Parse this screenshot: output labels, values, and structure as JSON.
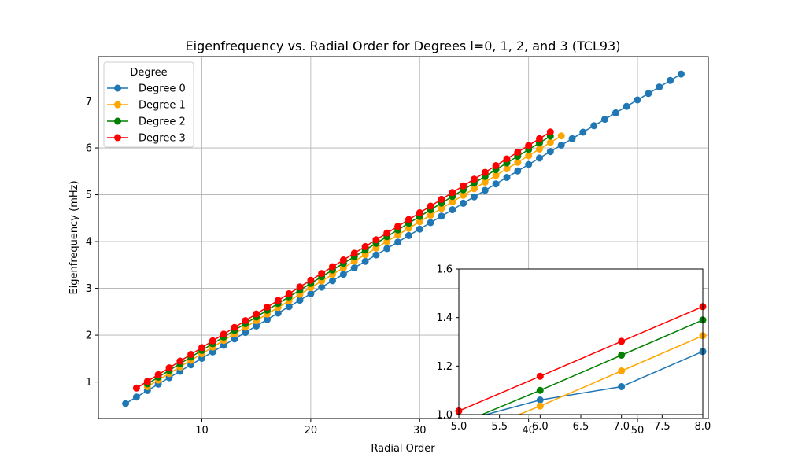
{
  "chart_data": {
    "type": "line",
    "title": "Eigenfrequency vs. Radial Order for Degrees l=0, 1, 2, and 3 (TCL93)",
    "xlabel": "Radial Order",
    "ylabel": "Eigenfrequency (mHz)",
    "xlim": [
      0.5,
      56.5
    ],
    "ylim": [
      0.22,
      7.95
    ],
    "xticks": [
      "10",
      "20",
      "30",
      "40",
      "50"
    ],
    "yticks": [
      "1",
      "2",
      "3",
      "4",
      "5",
      "6",
      "7"
    ],
    "grid": true,
    "legend": {
      "title": "Degree",
      "position": "top-left"
    },
    "series": [
      {
        "name": "Degree 0",
        "color": "#1f77b4",
        "n_start": 3,
        "n_end": 54,
        "f0": 0.54,
        "df": 0.138
      },
      {
        "name": "Degree 1",
        "color": "#ffa500",
        "n_start": 5,
        "n_end": 43,
        "f0": 0.9,
        "df": 0.141
      },
      {
        "name": "Degree 2",
        "color": "#008000",
        "n_start": 5,
        "n_end": 42,
        "f0": 0.96,
        "df": 0.143
      },
      {
        "name": "Degree 3",
        "color": "#ff0000",
        "n_start": 4,
        "n_end": 42,
        "f0": 0.87,
        "df": 0.144
      }
    ],
    "inset": {
      "xlim": [
        5.0,
        8.0
      ],
      "ylim": [
        1.0,
        1.6
      ],
      "xticks": [
        "5.0",
        "5.5",
        "6.0",
        "6.5",
        "7.0",
        "7.5",
        "8.0"
      ],
      "yticks": [
        "1.0",
        "1.2",
        "1.4",
        "1.6"
      ],
      "series": [
        {
          "name": "Degree 0",
          "color": "#1f77b4",
          "x": [
            5,
            6,
            7,
            8
          ],
          "y": [
            0.97,
            1.06,
            1.115,
            1.26
          ]
        },
        {
          "name": "Degree 1",
          "color": "#ffa500",
          "x": [
            5,
            6,
            7,
            8
          ],
          "y": [
            0.9,
            1.035,
            1.18,
            1.325
          ]
        },
        {
          "name": "Degree 2",
          "color": "#008000",
          "x": [
            5,
            6,
            7,
            8
          ],
          "y": [
            0.96,
            1.1,
            1.245,
            1.39
          ]
        },
        {
          "name": "Degree 3",
          "color": "#ff0000",
          "x": [
            5,
            6,
            7,
            8
          ],
          "y": [
            1.015,
            1.158,
            1.302,
            1.445
          ]
        }
      ]
    }
  }
}
